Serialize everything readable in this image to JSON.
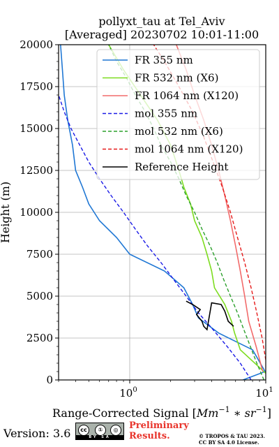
{
  "chart_data": {
    "type": "line",
    "title": "pollyxt_tau at Tel_Aviv",
    "subtitle": "[Averaged] 20230702 10:01-11:00",
    "xlabel_prefix": "Range-Corrected Signal [",
    "xlabel_math": "Mm",
    "xlabel_sup1": "−1",
    "xlabel_mid": " ∗ sr",
    "xlabel_sup2": "−1",
    "xlabel_suffix": "]",
    "ylabel": "Height (m)",
    "xscale": "log",
    "xlim": [
      0.3,
      10
    ],
    "ylim": [
      0,
      20000
    ],
    "x_ticks": [
      {
        "value": 1,
        "base": "10",
        "exp": "0"
      },
      {
        "value": 10,
        "base": "10",
        "exp": "1"
      }
    ],
    "y_ticks": [
      "0",
      "2500",
      "5000",
      "7500",
      "10000",
      "12500",
      "15000",
      "17500",
      "20000"
    ],
    "grid": true,
    "legend_position": "top-right",
    "series": [
      {
        "name": "FR 355 nm",
        "color": "#1f77d4",
        "style": "solid",
        "points": [
          [
            6.8,
            0
          ],
          [
            9.9,
            500
          ],
          [
            8.0,
            1800
          ],
          [
            4.5,
            2800
          ],
          [
            3.2,
            3700
          ],
          [
            2.9,
            4500
          ],
          [
            2.5,
            5500
          ],
          [
            1.8,
            6500
          ],
          [
            1.0,
            7500
          ],
          [
            0.8,
            8500
          ],
          [
            0.6,
            9500
          ],
          [
            0.5,
            10500
          ],
          [
            0.45,
            11500
          ],
          [
            0.4,
            12500
          ],
          [
            0.38,
            14000
          ],
          [
            0.35,
            15500
          ],
          [
            0.33,
            17000
          ],
          [
            0.32,
            18500
          ],
          [
            0.31,
            20000
          ]
        ]
      },
      {
        "name": "FR 532 nm (X6)",
        "color": "#7ddc1f",
        "style": "solid",
        "points": [
          [
            10.0,
            400
          ],
          [
            6.5,
            1800
          ],
          [
            5.9,
            2800
          ],
          [
            5.6,
            3500
          ],
          [
            5.0,
            4500
          ],
          [
            4.2,
            5500
          ],
          [
            4.0,
            6500
          ],
          [
            3.7,
            7500
          ],
          [
            3.4,
            8500
          ],
          [
            3.0,
            9500
          ],
          [
            2.8,
            10500
          ],
          [
            2.5,
            11500
          ],
          [
            2.3,
            12500
          ],
          [
            2.0,
            14000
          ],
          [
            1.6,
            15500
          ],
          [
            1.2,
            17000
          ],
          [
            0.9,
            18500
          ],
          [
            0.7,
            20000
          ]
        ]
      },
      {
        "name": "FR 1064 nm (X120)",
        "color": "#f26b6b",
        "style": "solid",
        "points": [
          [
            9.5,
            500
          ],
          [
            8.5,
            2000
          ],
          [
            7.5,
            3500
          ],
          [
            7.0,
            5000
          ],
          [
            6.5,
            6500
          ],
          [
            6.0,
            8000
          ],
          [
            5.5,
            9500
          ],
          [
            5.0,
            11000
          ],
          [
            4.5,
            12500
          ],
          [
            4.0,
            14000
          ],
          [
            3.5,
            15500
          ],
          [
            3.0,
            17000
          ],
          [
            2.6,
            18500
          ],
          [
            2.2,
            20000
          ]
        ]
      },
      {
        "name": "mol 355 nm",
        "color": "#1a1ae6",
        "style": "dashed",
        "points": [
          [
            7.8,
            0
          ],
          [
            6.5,
            1000
          ],
          [
            5.2,
            2000
          ],
          [
            4.1,
            3000
          ],
          [
            3.2,
            4000
          ],
          [
            2.6,
            5000
          ],
          [
            2.1,
            6000
          ],
          [
            1.7,
            7000
          ],
          [
            1.35,
            8000
          ],
          [
            1.1,
            9000
          ],
          [
            0.9,
            10000
          ],
          [
            0.73,
            11000
          ],
          [
            0.6,
            12000
          ],
          [
            0.5,
            13000
          ],
          [
            0.43,
            14000
          ],
          [
            0.37,
            15000
          ],
          [
            0.33,
            16000
          ],
          [
            0.3,
            17000
          ]
        ]
      },
      {
        "name": "mol 532 nm (X6)",
        "color": "#2ca02c",
        "style": "dashed",
        "points": [
          [
            9.7,
            0
          ],
          [
            8.6,
            1000
          ],
          [
            7.7,
            2000
          ],
          [
            6.9,
            3000
          ],
          [
            6.2,
            4000
          ],
          [
            5.5,
            5000
          ],
          [
            4.9,
            6000
          ],
          [
            4.4,
            7000
          ],
          [
            3.9,
            8000
          ],
          [
            3.4,
            9000
          ],
          [
            3.0,
            10000
          ],
          [
            2.6,
            11000
          ],
          [
            2.3,
            12000
          ],
          [
            2.0,
            13000
          ],
          [
            1.7,
            14000
          ],
          [
            1.5,
            15000
          ],
          [
            1.3,
            16000
          ],
          [
            1.1,
            17000
          ],
          [
            0.95,
            18000
          ],
          [
            0.8,
            19000
          ],
          [
            0.7,
            20000
          ]
        ]
      },
      {
        "name": "mol 1064 nm (X120)",
        "color": "#e61a1a",
        "style": "dashed",
        "points": [
          [
            10.0,
            1200
          ],
          [
            9.4,
            2500
          ],
          [
            8.6,
            4000
          ],
          [
            7.8,
            5500
          ],
          [
            7.0,
            7000
          ],
          [
            6.2,
            8500
          ],
          [
            5.5,
            10000
          ],
          [
            4.8,
            11500
          ],
          [
            4.1,
            13000
          ],
          [
            3.5,
            14500
          ],
          [
            2.9,
            16000
          ],
          [
            2.3,
            17500
          ],
          [
            1.8,
            19000
          ],
          [
            1.5,
            20000
          ]
        ]
      },
      {
        "name": "Reference Height",
        "color": "#000000",
        "style": "solid",
        "points": [
          [
            2.6,
            4700
          ],
          [
            2.9,
            4500
          ],
          [
            3.3,
            4200
          ],
          [
            3.1,
            3900
          ],
          [
            3.4,
            3500
          ],
          [
            3.5,
            3200
          ],
          [
            3.7,
            3000
          ],
          [
            4.0,
            4600
          ],
          [
            4.7,
            4500
          ],
          [
            5.0,
            4100
          ],
          [
            5.3,
            3500
          ],
          [
            5.8,
            3200
          ]
        ]
      }
    ]
  },
  "footer": {
    "version": "Version: 3.6",
    "cc_left": "cc",
    "cc_mid": "①",
    "cc_right": "◎",
    "cc_strip": "BY SA",
    "preliminary_line1": "Preliminary",
    "preliminary_line2": "Results.",
    "copyright_line1": "© TROPOS & TAU 2023.",
    "copyright_line2": "CC BY SA 4.0 License."
  }
}
